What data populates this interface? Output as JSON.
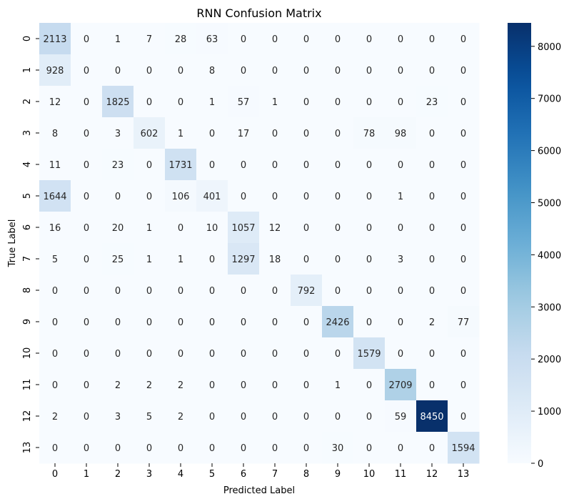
{
  "chart_data": {
    "type": "heatmap",
    "title": "RNN Confusion Matrix",
    "xlabel": "Predicted Label",
    "ylabel": "True Label",
    "x_categories": [
      "0",
      "1",
      "2",
      "3",
      "4",
      "5",
      "6",
      "7",
      "8",
      "9",
      "10",
      "11",
      "12",
      "13"
    ],
    "y_categories": [
      "0",
      "1",
      "2",
      "3",
      "4",
      "5",
      "6",
      "7",
      "8",
      "9",
      "10",
      "11",
      "12",
      "13"
    ],
    "values": [
      [
        2113,
        0,
        1,
        7,
        28,
        63,
        0,
        0,
        0,
        0,
        0,
        0,
        0,
        0
      ],
      [
        928,
        0,
        0,
        0,
        0,
        8,
        0,
        0,
        0,
        0,
        0,
        0,
        0,
        0
      ],
      [
        12,
        0,
        1825,
        0,
        0,
        1,
        57,
        1,
        0,
        0,
        0,
        0,
        23,
        0
      ],
      [
        8,
        0,
        3,
        602,
        1,
        0,
        17,
        0,
        0,
        0,
        78,
        98,
        0,
        0
      ],
      [
        11,
        0,
        23,
        0,
        1731,
        0,
        0,
        0,
        0,
        0,
        0,
        0,
        0,
        0
      ],
      [
        1644,
        0,
        0,
        0,
        106,
        401,
        0,
        0,
        0,
        0,
        0,
        1,
        0,
        0
      ],
      [
        16,
        0,
        20,
        1,
        0,
        10,
        1057,
        12,
        0,
        0,
        0,
        0,
        0,
        0
      ],
      [
        5,
        0,
        25,
        1,
        1,
        0,
        1297,
        18,
        0,
        0,
        0,
        3,
        0,
        0
      ],
      [
        0,
        0,
        0,
        0,
        0,
        0,
        0,
        0,
        792,
        0,
        0,
        0,
        0,
        0
      ],
      [
        0,
        0,
        0,
        0,
        0,
        0,
        0,
        0,
        0,
        2426,
        0,
        0,
        2,
        77
      ],
      [
        0,
        0,
        0,
        0,
        0,
        0,
        0,
        0,
        0,
        0,
        1579,
        0,
        0,
        0
      ],
      [
        0,
        0,
        2,
        2,
        2,
        0,
        0,
        0,
        0,
        1,
        0,
        2709,
        0,
        0
      ],
      [
        2,
        0,
        3,
        5,
        2,
        0,
        0,
        0,
        0,
        0,
        0,
        59,
        8450,
        0
      ],
      [
        0,
        0,
        0,
        0,
        0,
        0,
        0,
        0,
        0,
        30,
        0,
        0,
        0,
        1594
      ]
    ],
    "vmin": 0,
    "vmax": 8450,
    "colormap": "Blues",
    "colorbar_ticks": [
      0,
      1000,
      2000,
      3000,
      4000,
      5000,
      6000,
      7000,
      8000
    ],
    "grid": false,
    "legend": "colorbar-right"
  }
}
